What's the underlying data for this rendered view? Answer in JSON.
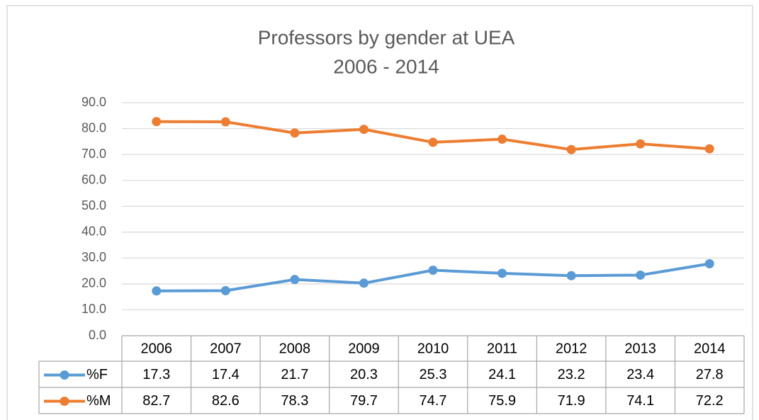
{
  "chart_data": {
    "type": "line",
    "title": "Professors by gender at UEA",
    "subtitle": "2006 - 2014",
    "categories": [
      "2006",
      "2007",
      "2008",
      "2009",
      "2010",
      "2011",
      "2012",
      "2013",
      "2014"
    ],
    "series": [
      {
        "name": "%F",
        "color": "#5b9bd5",
        "values": [
          17.3,
          17.4,
          21.7,
          20.3,
          25.3,
          24.1,
          23.2,
          23.4,
          27.8
        ]
      },
      {
        "name": "%M",
        "color": "#ed7d31",
        "values": [
          82.7,
          82.6,
          78.3,
          79.7,
          74.7,
          75.9,
          71.9,
          74.1,
          72.2
        ]
      }
    ],
    "ylim": [
      0,
      90
    ],
    "yticks": [
      {
        "value": 0,
        "label": "0.0"
      },
      {
        "value": 10,
        "label": "10.0"
      },
      {
        "value": 20,
        "label": "20.0"
      },
      {
        "value": 30,
        "label": "30.0"
      },
      {
        "value": 40,
        "label": "40.0"
      },
      {
        "value": 50,
        "label": "50.0"
      },
      {
        "value": 60,
        "label": "60.0"
      },
      {
        "value": 70,
        "label": "70.0"
      },
      {
        "value": 80,
        "label": "80.0"
      },
      {
        "value": 90,
        "label": "90.0"
      }
    ],
    "grid": true,
    "data_table": true
  }
}
